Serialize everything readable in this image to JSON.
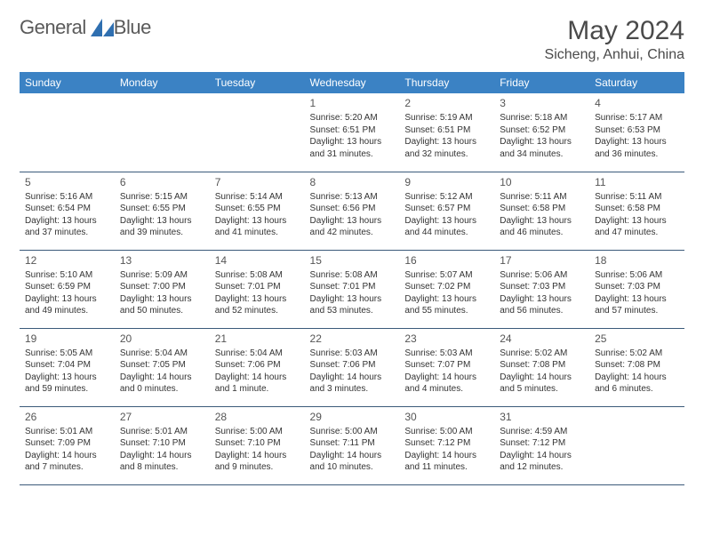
{
  "brand": {
    "text_a": "General",
    "text_b": "Blue",
    "text_color": "#5a5a5a",
    "accent_color": "#2f6fb0"
  },
  "header": {
    "title": "May 2024",
    "location": "Sicheng, Anhui, China"
  },
  "theme": {
    "header_bg": "#3b82c4",
    "header_fg": "#ffffff",
    "rule_color": "#3b5a7a",
    "text_color": "#333333",
    "page_bg": "#ffffff"
  },
  "weekdays": [
    "Sunday",
    "Monday",
    "Tuesday",
    "Wednesday",
    "Thursday",
    "Friday",
    "Saturday"
  ],
  "weeks": [
    [
      null,
      null,
      null,
      {
        "n": "1",
        "sr": "Sunrise: 5:20 AM",
        "ss": "Sunset: 6:51 PM",
        "d1": "Daylight: 13 hours",
        "d2": "and 31 minutes."
      },
      {
        "n": "2",
        "sr": "Sunrise: 5:19 AM",
        "ss": "Sunset: 6:51 PM",
        "d1": "Daylight: 13 hours",
        "d2": "and 32 minutes."
      },
      {
        "n": "3",
        "sr": "Sunrise: 5:18 AM",
        "ss": "Sunset: 6:52 PM",
        "d1": "Daylight: 13 hours",
        "d2": "and 34 minutes."
      },
      {
        "n": "4",
        "sr": "Sunrise: 5:17 AM",
        "ss": "Sunset: 6:53 PM",
        "d1": "Daylight: 13 hours",
        "d2": "and 36 minutes."
      }
    ],
    [
      {
        "n": "5",
        "sr": "Sunrise: 5:16 AM",
        "ss": "Sunset: 6:54 PM",
        "d1": "Daylight: 13 hours",
        "d2": "and 37 minutes."
      },
      {
        "n": "6",
        "sr": "Sunrise: 5:15 AM",
        "ss": "Sunset: 6:55 PM",
        "d1": "Daylight: 13 hours",
        "d2": "and 39 minutes."
      },
      {
        "n": "7",
        "sr": "Sunrise: 5:14 AM",
        "ss": "Sunset: 6:55 PM",
        "d1": "Daylight: 13 hours",
        "d2": "and 41 minutes."
      },
      {
        "n": "8",
        "sr": "Sunrise: 5:13 AM",
        "ss": "Sunset: 6:56 PM",
        "d1": "Daylight: 13 hours",
        "d2": "and 42 minutes."
      },
      {
        "n": "9",
        "sr": "Sunrise: 5:12 AM",
        "ss": "Sunset: 6:57 PM",
        "d1": "Daylight: 13 hours",
        "d2": "and 44 minutes."
      },
      {
        "n": "10",
        "sr": "Sunrise: 5:11 AM",
        "ss": "Sunset: 6:58 PM",
        "d1": "Daylight: 13 hours",
        "d2": "and 46 minutes."
      },
      {
        "n": "11",
        "sr": "Sunrise: 5:11 AM",
        "ss": "Sunset: 6:58 PM",
        "d1": "Daylight: 13 hours",
        "d2": "and 47 minutes."
      }
    ],
    [
      {
        "n": "12",
        "sr": "Sunrise: 5:10 AM",
        "ss": "Sunset: 6:59 PM",
        "d1": "Daylight: 13 hours",
        "d2": "and 49 minutes."
      },
      {
        "n": "13",
        "sr": "Sunrise: 5:09 AM",
        "ss": "Sunset: 7:00 PM",
        "d1": "Daylight: 13 hours",
        "d2": "and 50 minutes."
      },
      {
        "n": "14",
        "sr": "Sunrise: 5:08 AM",
        "ss": "Sunset: 7:01 PM",
        "d1": "Daylight: 13 hours",
        "d2": "and 52 minutes."
      },
      {
        "n": "15",
        "sr": "Sunrise: 5:08 AM",
        "ss": "Sunset: 7:01 PM",
        "d1": "Daylight: 13 hours",
        "d2": "and 53 minutes."
      },
      {
        "n": "16",
        "sr": "Sunrise: 5:07 AM",
        "ss": "Sunset: 7:02 PM",
        "d1": "Daylight: 13 hours",
        "d2": "and 55 minutes."
      },
      {
        "n": "17",
        "sr": "Sunrise: 5:06 AM",
        "ss": "Sunset: 7:03 PM",
        "d1": "Daylight: 13 hours",
        "d2": "and 56 minutes."
      },
      {
        "n": "18",
        "sr": "Sunrise: 5:06 AM",
        "ss": "Sunset: 7:03 PM",
        "d1": "Daylight: 13 hours",
        "d2": "and 57 minutes."
      }
    ],
    [
      {
        "n": "19",
        "sr": "Sunrise: 5:05 AM",
        "ss": "Sunset: 7:04 PM",
        "d1": "Daylight: 13 hours",
        "d2": "and 59 minutes."
      },
      {
        "n": "20",
        "sr": "Sunrise: 5:04 AM",
        "ss": "Sunset: 7:05 PM",
        "d1": "Daylight: 14 hours",
        "d2": "and 0 minutes."
      },
      {
        "n": "21",
        "sr": "Sunrise: 5:04 AM",
        "ss": "Sunset: 7:06 PM",
        "d1": "Daylight: 14 hours",
        "d2": "and 1 minute."
      },
      {
        "n": "22",
        "sr": "Sunrise: 5:03 AM",
        "ss": "Sunset: 7:06 PM",
        "d1": "Daylight: 14 hours",
        "d2": "and 3 minutes."
      },
      {
        "n": "23",
        "sr": "Sunrise: 5:03 AM",
        "ss": "Sunset: 7:07 PM",
        "d1": "Daylight: 14 hours",
        "d2": "and 4 minutes."
      },
      {
        "n": "24",
        "sr": "Sunrise: 5:02 AM",
        "ss": "Sunset: 7:08 PM",
        "d1": "Daylight: 14 hours",
        "d2": "and 5 minutes."
      },
      {
        "n": "25",
        "sr": "Sunrise: 5:02 AM",
        "ss": "Sunset: 7:08 PM",
        "d1": "Daylight: 14 hours",
        "d2": "and 6 minutes."
      }
    ],
    [
      {
        "n": "26",
        "sr": "Sunrise: 5:01 AM",
        "ss": "Sunset: 7:09 PM",
        "d1": "Daylight: 14 hours",
        "d2": "and 7 minutes."
      },
      {
        "n": "27",
        "sr": "Sunrise: 5:01 AM",
        "ss": "Sunset: 7:10 PM",
        "d1": "Daylight: 14 hours",
        "d2": "and 8 minutes."
      },
      {
        "n": "28",
        "sr": "Sunrise: 5:00 AM",
        "ss": "Sunset: 7:10 PM",
        "d1": "Daylight: 14 hours",
        "d2": "and 9 minutes."
      },
      {
        "n": "29",
        "sr": "Sunrise: 5:00 AM",
        "ss": "Sunset: 7:11 PM",
        "d1": "Daylight: 14 hours",
        "d2": "and 10 minutes."
      },
      {
        "n": "30",
        "sr": "Sunrise: 5:00 AM",
        "ss": "Sunset: 7:12 PM",
        "d1": "Daylight: 14 hours",
        "d2": "and 11 minutes."
      },
      {
        "n": "31",
        "sr": "Sunrise: 4:59 AM",
        "ss": "Sunset: 7:12 PM",
        "d1": "Daylight: 14 hours",
        "d2": "and 12 minutes."
      },
      null
    ]
  ]
}
